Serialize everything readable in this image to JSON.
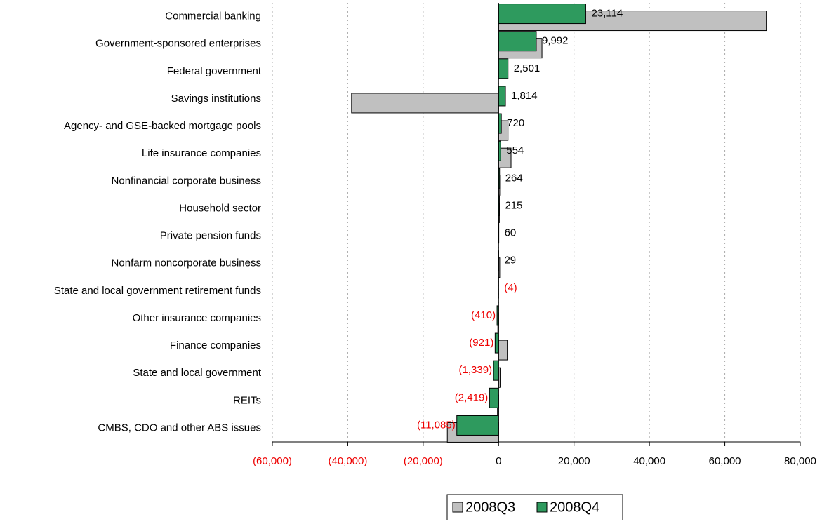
{
  "chart_data": {
    "type": "hbar",
    "categories": [
      "Commercial banking",
      "Government-sponsored enterprises",
      "Federal government",
      "Savings institutions",
      "Agency- and GSE-backed mortgage pools",
      "Life insurance companies",
      "Nonfinancial corporate business",
      "Household sector",
      "Private pension funds",
      "Nonfarm noncorporate business",
      "State and local government retirement funds",
      "Other insurance companies",
      "Finance companies",
      "State and local government",
      "REITs",
      "CMBS, CDO and other ABS issues"
    ],
    "series": [
      {
        "name": "2008Q3",
        "color": "#c0c0c0",
        "values": [
          71000,
          11500,
          0,
          -39000,
          2500,
          3300,
          300,
          200,
          0,
          300,
          0,
          -200,
          2300,
          400,
          -300,
          -13600
        ]
      },
      {
        "name": "2008Q4",
        "color": "#2e9a5e",
        "values": [
          23114,
          9992,
          2501,
          1814,
          720,
          554,
          264,
          215,
          60,
          29,
          -4,
          -410,
          -921,
          -1339,
          -2419,
          -11085
        ],
        "value_labels": [
          "23,114",
          "9,992",
          "2,501",
          "1,814",
          "720",
          "554",
          "264",
          "215",
          "60",
          "29",
          "(4)",
          "(410)",
          "(921)",
          "(1,339)",
          "(2,419)",
          "(11,085)"
        ]
      }
    ],
    "xlim": [
      -60000,
      80000
    ],
    "xticks": [
      {
        "value": -60000,
        "label": "(60,000)"
      },
      {
        "value": -40000,
        "label": "(40,000)"
      },
      {
        "value": -20000,
        "label": "(20,000)"
      },
      0,
      {
        "value": 20000,
        "label": "20,000"
      },
      {
        "value": 40000,
        "label": "40,000"
      },
      {
        "value": 60000,
        "label": "60,000"
      },
      {
        "value": 80000,
        "label": "80,000"
      }
    ],
    "grid": true,
    "legend": "bottom"
  }
}
